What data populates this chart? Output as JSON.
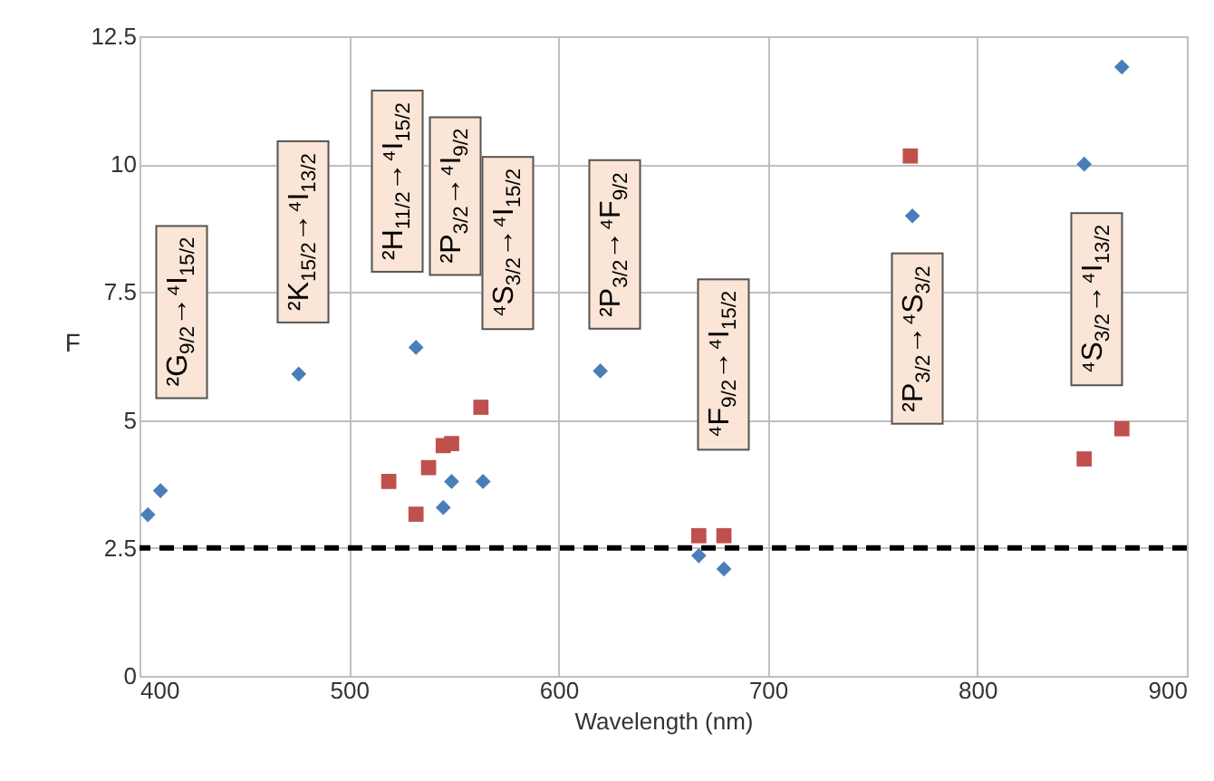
{
  "chart_data": {
    "type": "scatter",
    "xlabel": "Wavelength (nm)",
    "ylabel": "F",
    "xlim": [
      400,
      900
    ],
    "xticks": [
      400,
      500,
      600,
      700,
      800,
      900
    ],
    "ylim": [
      0,
      12.5
    ],
    "yticks": [
      0,
      {
        "value": 2.5,
        "label": "2.5"
      },
      5,
      {
        "value": 7.5,
        "label": "7.5"
      },
      10,
      {
        "value": 12.5,
        "label": "12.5"
      }
    ],
    "grid": true,
    "legend": false,
    "series": [
      {
        "color": "#4a7ebb",
        "marker": "diamond",
        "x": [
          404,
          410,
          476,
          532,
          545,
          549,
          564,
          620,
          667,
          679,
          769,
          851,
          869
        ],
        "values": [
          3.15,
          3.62,
          5.9,
          6.42,
          3.29,
          3.8,
          3.8,
          5.96,
          2.35,
          2.09,
          8.99,
          10.0,
          11.9
        ]
      },
      {
        "color": "#c0504d",
        "marker": "square",
        "x": [
          519,
          532,
          538,
          545,
          549,
          563,
          667,
          679,
          768,
          851,
          869
        ],
        "values": [
          3.8,
          3.16,
          4.07,
          4.5,
          4.54,
          5.25,
          2.74,
          2.74,
          10.16,
          4.24,
          4.83
        ]
      }
    ],
    "ref_lines": [
      {
        "axis": "y",
        "value": 2.5,
        "color": "#000000",
        "line_style": "dashed"
      }
    ],
    "annotations": [
      "²G$_{9/2}$→⁴I$_{15/2}$",
      "²K$_{15/2}$→⁴I$_{13/2}$",
      "²H$_{11/2}$→⁴I$_{15/2}$",
      "²P$_{3/2}$→⁴I$_{9/2}$",
      "⁴S$_{3/2}$→⁴I$_{15/2}$",
      "²P$_{3/2}$→⁴F$_{9/2}$",
      "⁴F$_{9/2}$→⁴I$_{15/2}$",
      "²P$_{3/2}$→⁴S$_{3/2}$",
      "⁴S$_{3/2}$→⁴I$_{13/2}$"
    ]
  }
}
